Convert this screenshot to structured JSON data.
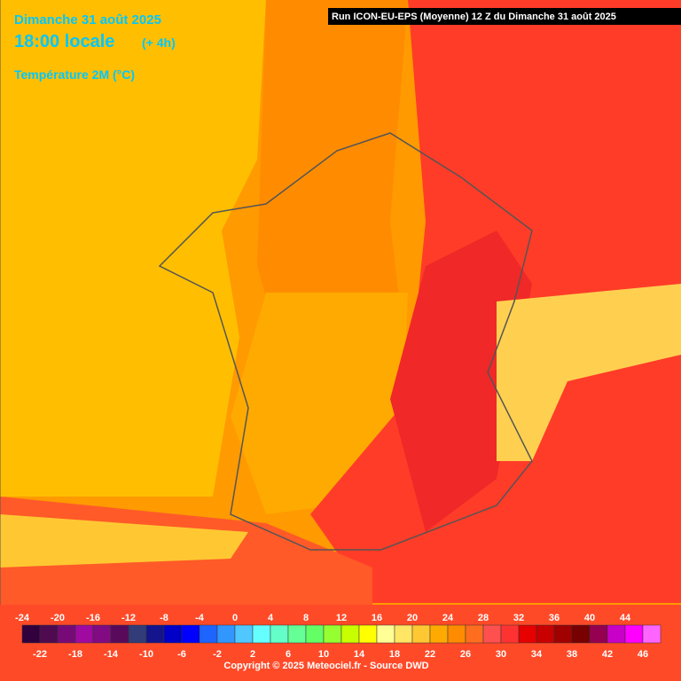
{
  "header": {
    "date": "Dimanche 31 août 2025",
    "time": "18:00 locale",
    "offset": "(+ 4h)",
    "variable": "Température 2M (°C)",
    "run": "Run ICON-EU-EPS (Moyenne) 12 Z du Dimanche 31 août 2025"
  },
  "legend": {
    "ticks": [
      -24,
      -22,
      -20,
      -18,
      -16,
      -14,
      -12,
      -10,
      -8,
      -6,
      -4,
      -2,
      0,
      2,
      4,
      6,
      8,
      10,
      12,
      14,
      16,
      18,
      20,
      22,
      24,
      26,
      28,
      30,
      32,
      34,
      36,
      38,
      40,
      42,
      44,
      46
    ],
    "colors": [
      "#32003c",
      "#500a50",
      "#780a78",
      "#a00aa0",
      "#820a82",
      "#5a0a5a",
      "#323c78",
      "#14148c",
      "#0000c8",
      "#0000ff",
      "#1e64ff",
      "#3296ff",
      "#50c8ff",
      "#64ffff",
      "#64ffc8",
      "#64ff96",
      "#64ff64",
      "#96ff32",
      "#c8ff00",
      "#ffff00",
      "#ffff96",
      "#ffe664",
      "#ffc832",
      "#ffaa00",
      "#ff8c00",
      "#ff6e1e",
      "#ff5050",
      "#ff3232",
      "#e60000",
      "#c80000",
      "#a00000",
      "#780000",
      "#960050",
      "#c800c8",
      "#ff00ff",
      "#ff64ff"
    ]
  },
  "footer": {
    "copyright": "Copyright © 2025 Meteociel.fr - Source DWD"
  }
}
